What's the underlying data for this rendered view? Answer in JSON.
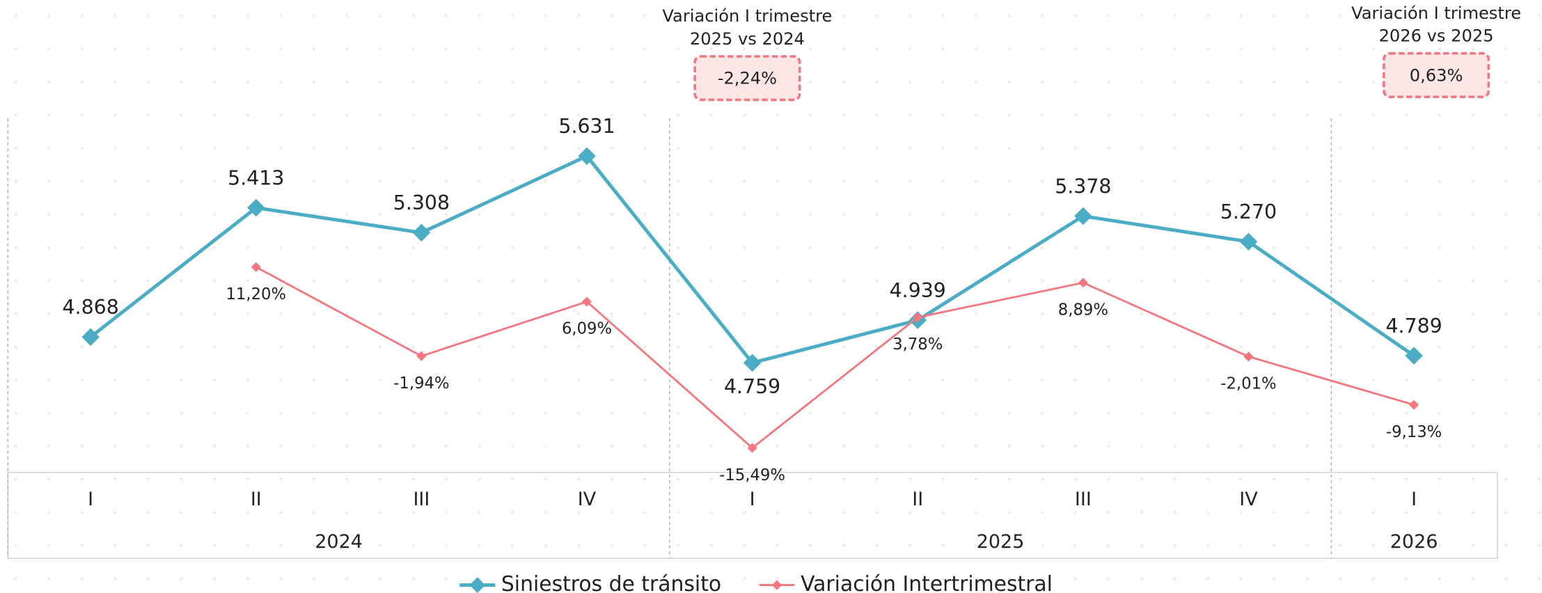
{
  "chart_data": {
    "type": "line",
    "groups": [
      {
        "name": "2024",
        "categories": [
          "I",
          "II",
          "III",
          "IV"
        ]
      },
      {
        "name": "2025",
        "categories": [
          "I",
          "II",
          "III",
          "IV"
        ]
      },
      {
        "name": "2026",
        "categories": [
          "I"
        ]
      }
    ],
    "series": [
      {
        "name": "Siniestros de tránsito",
        "color": "#4bacc6",
        "values": [
          4868,
          5413,
          5308,
          5631,
          4759,
          4939,
          5378,
          5270,
          4789
        ],
        "value_labels": [
          "4.868",
          "5.413",
          "5.308",
          "5.631",
          "4.759",
          "4.939",
          "5.378",
          "5.270",
          "4.789"
        ]
      },
      {
        "name": "Variación Intertrimestral",
        "color": "#f4777f",
        "axis": "y2",
        "values": [
          null,
          11.2,
          -1.94,
          6.09,
          -15.49,
          3.78,
          8.89,
          -2.01,
          -9.13
        ],
        "value_labels": [
          null,
          "11,20%",
          "-1,94%",
          "6,09%",
          "-15,49%",
          "3,78%",
          "8,89%",
          "-2,01%",
          "-9,13%"
        ]
      }
    ],
    "ylim": [
      4297,
      5789
    ],
    "y2lim": [
      -19.1,
      33.1
    ],
    "annotations": [
      {
        "title": [
          "Variación I trimestre",
          "2025 vs 2024"
        ],
        "value": -2.24,
        "label": "-2,24%"
      },
      {
        "title": [
          "Variación I trimestre",
          "2026 vs 2025"
        ],
        "value": 0.63,
        "label": "0,63%"
      }
    ]
  }
}
